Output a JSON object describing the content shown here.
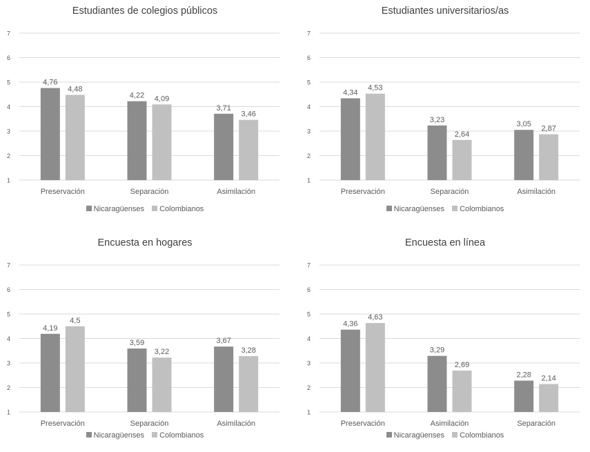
{
  "chart_data": [
    {
      "type": "bar",
      "title": "Estudiantes de colegios públicos",
      "categories": [
        "Preservación",
        "Separación",
        "Asimilación"
      ],
      "series": [
        {
          "name": "Nicaragüenses",
          "values": [
            4.76,
            4.22,
            3.71
          ],
          "labels": [
            "4,76",
            "4,22",
            "3,71"
          ]
        },
        {
          "name": "Colombianos",
          "values": [
            4.48,
            4.09,
            3.46
          ],
          "labels": [
            "4,48",
            "4,09",
            "3,46"
          ]
        }
      ],
      "ylim": [
        1,
        7
      ],
      "yticks": [
        "1",
        "2",
        "3",
        "4",
        "5",
        "6",
        "7"
      ],
      "grid": true,
      "legend": "bottom"
    },
    {
      "type": "bar",
      "title": "Estudiantes universitarios/as",
      "categories": [
        "Preservación",
        "Separación",
        "Asimilación"
      ],
      "series": [
        {
          "name": "Nicaragüenses",
          "values": [
            4.34,
            3.23,
            3.05
          ],
          "labels": [
            "4,34",
            "3,23",
            "3,05"
          ]
        },
        {
          "name": "Colombianos",
          "values": [
            4.53,
            2.64,
            2.87
          ],
          "labels": [
            "4,53",
            "2,64",
            "2,87"
          ]
        }
      ],
      "ylim": [
        1,
        7
      ],
      "yticks": [
        "1",
        "2",
        "3",
        "4",
        "5",
        "6",
        "7"
      ],
      "grid": true,
      "legend": "bottom"
    },
    {
      "type": "bar",
      "title": "Encuesta en hogares",
      "categories": [
        "Preservación",
        "Separación",
        "Asimilación"
      ],
      "series": [
        {
          "name": "Nicaragüenses",
          "values": [
            4.19,
            3.59,
            3.67
          ],
          "labels": [
            "4,19",
            "3,59",
            "3,67"
          ]
        },
        {
          "name": "Colombianos",
          "values": [
            4.5,
            3.22,
            3.28
          ],
          "labels": [
            "4,5",
            "3,22",
            "3,28"
          ]
        }
      ],
      "ylim": [
        1,
        7
      ],
      "yticks": [
        "1",
        "2",
        "3",
        "4",
        "5",
        "6",
        "7"
      ],
      "grid": true,
      "legend": "bottom"
    },
    {
      "type": "bar",
      "title": "Encuesta en línea",
      "categories": [
        "Preservación",
        "Asimilación",
        "Separación"
      ],
      "series": [
        {
          "name": "Nicaragüenses",
          "values": [
            4.36,
            3.29,
            2.28
          ],
          "labels": [
            "4,36",
            "3,29",
            "2,28"
          ]
        },
        {
          "name": "Colombianos",
          "values": [
            4.63,
            2.69,
            2.14
          ],
          "labels": [
            "4,63",
            "2,69",
            "2,14"
          ]
        }
      ],
      "ylim": [
        1,
        7
      ],
      "yticks": [
        "1",
        "2",
        "3",
        "4",
        "5",
        "6",
        "7"
      ],
      "grid": true,
      "legend": "bottom"
    }
  ],
  "colors": {
    "series": [
      "#8c8c8c",
      "#c0c0c0"
    ],
    "grid": "#d9d9d9",
    "text": "#595959"
  }
}
